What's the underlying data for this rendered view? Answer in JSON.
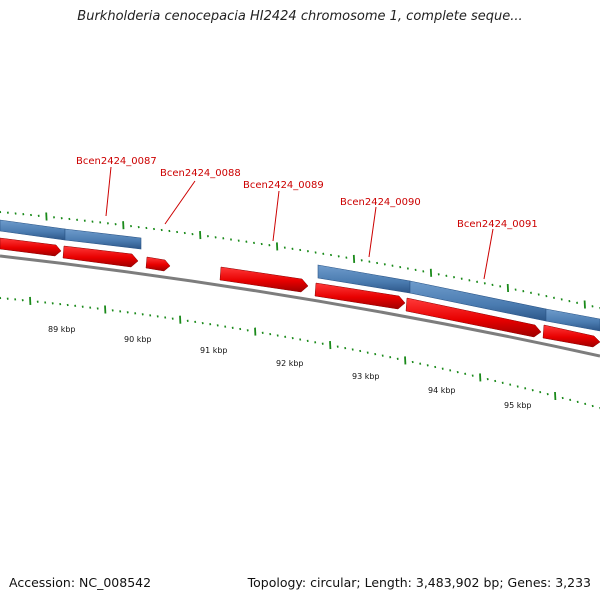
{
  "title": "Burkholderia cenocepacia HI2424 chromosome 1, complete seque...",
  "footer": {
    "accession": "Accession: NC_008542",
    "summary": "Topology: circular; Length: 3,483,902 bp; Genes: 3,233"
  },
  "colors": {
    "gene_forward": "#ff0000",
    "cds_band": "#4f81bd",
    "backbone": "#808080",
    "ticks": "#1a8a1a",
    "label": "#cc0000"
  },
  "gene_labels": [
    {
      "name": "Bcen2424_0087"
    },
    {
      "name": "Bcen2424_0088"
    },
    {
      "name": "Bcen2424_0089"
    },
    {
      "name": "Bcen2424_0090"
    },
    {
      "name": "Bcen2424_0091"
    }
  ],
  "kbp_labels": [
    "89 kbp",
    "90 kbp",
    "91 kbp",
    "92 kbp",
    "93 kbp",
    "94 kbp",
    "95 kbp"
  ]
}
